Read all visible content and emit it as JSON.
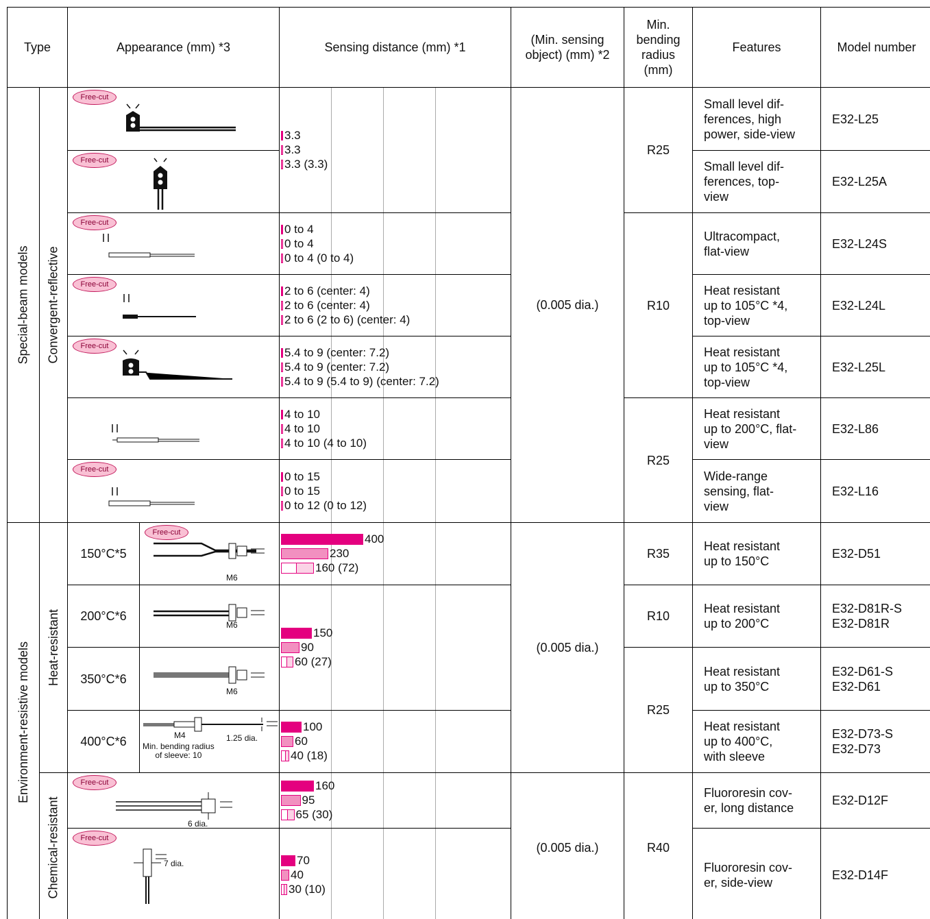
{
  "header": {
    "type": "Type",
    "appearance": "Appearance (mm) *3",
    "sensing": "Sensing distance (mm) *1",
    "min_object": "(Min. sensing\nobject) (mm) *2",
    "bending": "Min.\nbending\nradius\n(mm)",
    "features": "Features",
    "model": "Model number"
  },
  "groups": [
    "Special-beam models",
    "Environment-resistive models"
  ],
  "subgroups": [
    "Convergent-reflective",
    "Heat-resistant",
    "Chemical-resistant"
  ],
  "rows": [
    {
      "badge": "Free-cut",
      "features": "Small level dif-\nferences, high\npower, side-view",
      "model": "E32-L25"
    },
    {
      "badge": "Free-cut",
      "features": "Small level dif-\nferences, top-\nview",
      "model": "E32-L25A"
    },
    {
      "badge": "Free-cut",
      "features": "Ultracompact,\nflat-view",
      "model": "E32-L24S"
    },
    {
      "badge": "Free-cut",
      "features": "Heat resistant\nup to 105°C *4,\ntop-view",
      "model": "E32-L24L"
    },
    {
      "badge": "Free-cut",
      "features": "Heat resistant\nup to 105°C *4,\ntop-view",
      "model": "E32-L25L"
    },
    {
      "features": "Heat resistant\nup to 200°C, flat-\nview",
      "model": "E32-L86"
    },
    {
      "badge": "Free-cut",
      "features": "Wide-range\nsensing, flat-\nview",
      "model": "E32-L16"
    },
    {
      "temp": "150°C*5",
      "badge": "Free-cut",
      "notes": [
        "M6"
      ],
      "features": "Heat resistant\nup to 150°C",
      "model": "E32-D51"
    },
    {
      "temp": "200°C*6",
      "notes": [
        "M6"
      ],
      "features": "Heat resistant\nup to 200°C",
      "model": "E32-D81R-S\nE32-D81R"
    },
    {
      "temp": "350°C*6",
      "notes": [
        "M6"
      ],
      "features": "Heat resistant\nup to 350°C",
      "model": "E32-D61-S\nE32-D61"
    },
    {
      "temp": "400°C*6",
      "notes": [
        "M4",
        "1.25 dia.",
        "Min. bending radius\nof sleeve: 10"
      ],
      "features": "Heat resistant\nup to 400°C,\nwith sleeve",
      "model": "E32-D73-S\nE32-D73"
    },
    {
      "badge": "Free-cut",
      "notes": [
        "6 dia."
      ],
      "features": "Fluororesin cov-\ner, long distance",
      "model": "E32-D12F"
    },
    {
      "badge": "Free-cut",
      "notes": [
        "7 dia."
      ],
      "features": "Fluororesin cov-\ner, side-view",
      "model": "E32-D14F"
    }
  ],
  "sensing": [
    [
      "3.3",
      "3.3",
      "3.3 (3.3)"
    ],
    [
      "0 to 4",
      "0 to 4",
      "0 to 4 (0 to 4)"
    ],
    [
      "2 to 6 (center: 4)",
      "2 to 6 (center: 4)",
      "2 to 6 (2 to 6) (center: 4)"
    ],
    [
      "5.4 to 9 (center: 7.2)",
      "5.4 to 9 (center: 7.2)",
      "5.4 to 9 (5.4 to 9) (center: 7.2)"
    ],
    [
      "4 to 10",
      "4 to 10",
      "4 to 10 (4 to 10)"
    ],
    [
      "0 to 15",
      "0 to 15",
      "0 to 12 (0 to 12)"
    ],
    [
      400,
      230,
      {
        "value": 160,
        "label": "160 (72)"
      }
    ],
    [
      150,
      90,
      {
        "value": 60,
        "label": "60 (27)"
      }
    ],
    [
      100,
      60,
      {
        "value": 40,
        "label": "40 (18)"
      }
    ],
    [
      160,
      95,
      {
        "value": 65,
        "label": "65 (30)"
      }
    ],
    [
      70,
      40,
      {
        "value": 30,
        "label": "30 (10)"
      }
    ]
  ],
  "min_object": [
    "(0.005 dia.)",
    "(0.005 dia.)",
    "(0.005 dia.)"
  ],
  "bending": [
    "R25",
    "R10",
    "R25",
    "R35",
    "R10",
    "R25",
    "R40"
  ]
}
